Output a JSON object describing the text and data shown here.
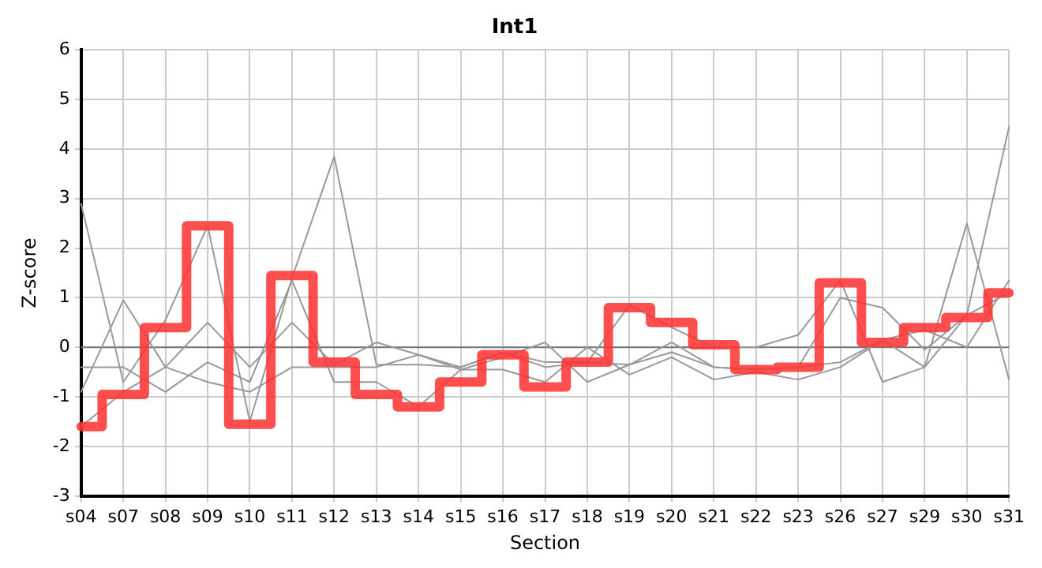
{
  "chart_data": {
    "type": "line",
    "title": "Int1",
    "xlabel": "Section",
    "ylabel": "Z-score",
    "categories": [
      "s04",
      "s07",
      "s08",
      "s09",
      "s10",
      "s11",
      "s12",
      "s13",
      "s14",
      "s15",
      "s16",
      "s17",
      "s18",
      "s19",
      "s20",
      "s21",
      "s22",
      "s23",
      "s26",
      "s27",
      "s29",
      "s30",
      "s31"
    ],
    "series": [
      {
        "color": "#999999",
        "values": [
          2.9,
          -0.7,
          0.55,
          2.45,
          -1.5,
          1.4,
          3.85,
          -0.35,
          -0.35,
          -0.4,
          -0.1,
          -0.4,
          -0.3,
          0.85,
          0.4,
          0,
          0,
          0.25,
          1.35,
          -0.7,
          -0.4,
          2.5,
          -0.65
        ]
      },
      {
        "color": "#999999",
        "values": [
          -0.9,
          0.95,
          -0.4,
          0.5,
          -0.4,
          0.5,
          -0.35,
          0.1,
          -0.15,
          -0.45,
          -0.2,
          0.1,
          -0.7,
          -0.35,
          0.1,
          -0.4,
          -0.45,
          -0.4,
          1.0,
          0.8,
          -0.05,
          0.65,
          4.45
        ]
      },
      {
        "color": "#999999",
        "values": [
          -0.4,
          -0.4,
          -0.9,
          -0.3,
          -0.7,
          1.35,
          -0.7,
          -0.7,
          -1.2,
          -0.45,
          -0.45,
          -0.7,
          0.0,
          -0.55,
          -0.2,
          -0.65,
          -0.5,
          -0.65,
          -0.4,
          0.15,
          0.35,
          0,
          1.35
        ]
      },
      {
        "color": "#999999",
        "values": [
          -1.6,
          -0.9,
          -0.4,
          -0.7,
          -0.9,
          -0.4,
          -0.4,
          -0.4,
          -0.15,
          -0.4,
          -0.1,
          -0.3,
          -0.3,
          -0.35,
          -0.1,
          -0.4,
          -0.45,
          -0.4,
          -0.3,
          0.15,
          -0.4,
          0.65,
          1.1
        ]
      },
      {
        "type": "step",
        "color": "#ff3333",
        "values": [
          -1.6,
          -0.95,
          0.4,
          2.45,
          -1.55,
          1.45,
          -0.3,
          -0.95,
          -1.2,
          -0.7,
          -0.15,
          -0.8,
          -0.3,
          0.8,
          0.5,
          0.05,
          -0.45,
          -0.4,
          1.3,
          0.1,
          0.4,
          0.6,
          1.1
        ]
      }
    ],
    "ylim": [
      -3,
      6
    ],
    "yticks": [
      -3,
      -2,
      -1,
      0,
      1,
      2,
      3,
      4,
      5,
      6
    ],
    "ref_lines": [
      {
        "axis": "y",
        "value": 0,
        "color": "#777777"
      }
    ],
    "grid": true,
    "legend": false,
    "marker": "none"
  }
}
